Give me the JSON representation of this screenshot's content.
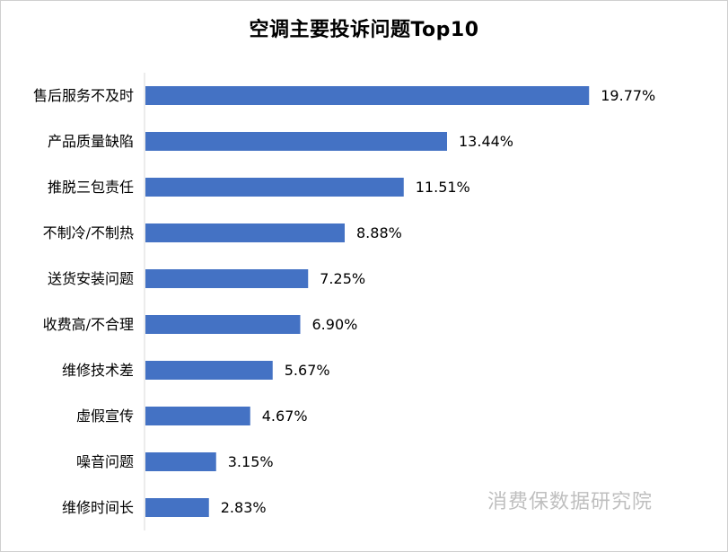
{
  "chart_data": {
    "type": "bar",
    "orientation": "horizontal",
    "title": "空调主要投诉问题Top10",
    "categories": [
      "售后服务不及时",
      "产品质量缺陷",
      "推脱三包责任",
      "不制冷/不制热",
      "送货安装问题",
      "收费高/不合理",
      "维修技术差",
      "虚假宣传",
      "噪音问题",
      "维修时间长"
    ],
    "values": [
      19.77,
      13.44,
      11.51,
      8.88,
      7.25,
      6.9,
      5.67,
      4.67,
      3.15,
      2.83
    ],
    "value_labels": [
      "19.77%",
      "13.44%",
      "11.51%",
      "8.88%",
      "7.25%",
      "6.90%",
      "5.67%",
      "4.67%",
      "3.15%",
      "2.83%"
    ],
    "xlabel": "",
    "ylabel": "",
    "xlim": [
      0,
      20
    ],
    "grid": false,
    "legend": "none",
    "bar_color": "#4472C4"
  },
  "watermark": "消费保数据研究院"
}
